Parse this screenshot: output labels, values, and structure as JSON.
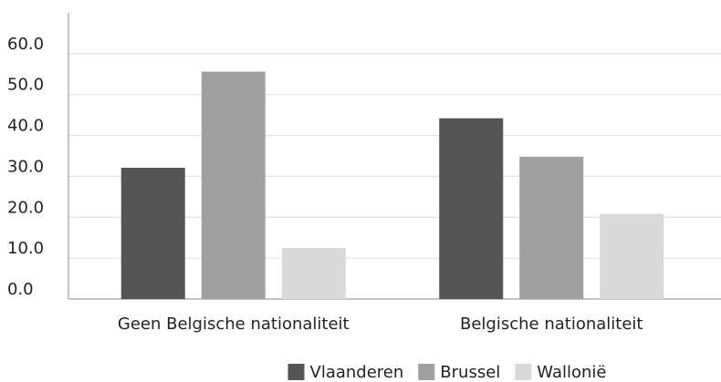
{
  "chart_data": {
    "type": "bar",
    "categories": [
      "Geen Belgische nationaliteit",
      "Belgische nationaliteit"
    ],
    "series": [
      {
        "name": "Vlaanderen",
        "color": "#555555",
        "values": [
          32.1,
          44.2
        ]
      },
      {
        "name": "Brussel",
        "color": "#a0a0a0",
        "values": [
          55.6,
          34.8
        ]
      },
      {
        "name": "Wallonië",
        "color": "#d9d9d9",
        "values": [
          12.5,
          20.8
        ]
      }
    ],
    "ylim": [
      0,
      70
    ],
    "yticks": [
      {
        "value": 0,
        "label": "0.0"
      },
      {
        "value": 10,
        "label": "10.0"
      },
      {
        "value": 20,
        "label": "20.0"
      },
      {
        "value": 30,
        "label": "30.0"
      },
      {
        "value": 40,
        "label": "40.0"
      },
      {
        "value": 50,
        "label": "50.0"
      },
      {
        "value": 60,
        "label": "60.0"
      }
    ],
    "grid": true,
    "legend": "bottom"
  }
}
